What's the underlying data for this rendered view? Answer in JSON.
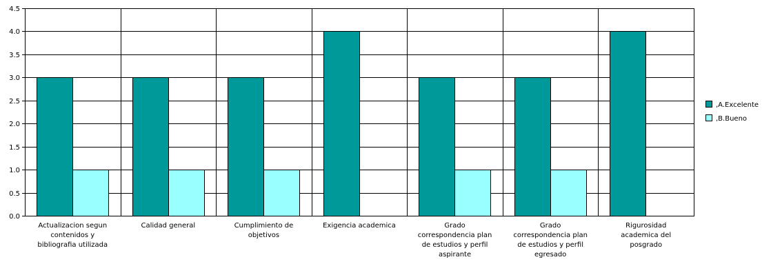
{
  "chart_data": {
    "type": "bar",
    "categories": [
      [
        "Actualizacion segun",
        "contenidos y",
        "bibliografia utilizada"
      ],
      [
        "Calidad general"
      ],
      [
        "Cumplimiento de",
        "objetivos"
      ],
      [
        "Exigencia academica"
      ],
      [
        "Grado",
        "correspondencia plan",
        "de estudios y perfil",
        "aspirante"
      ],
      [
        "Grado",
        "correspondencia plan",
        "de estudios y perfil",
        "egresado"
      ],
      [
        "Rigurosidad",
        "academica del",
        "posgrado"
      ]
    ],
    "series": [
      {
        "name": ",A.Excelente",
        "color": "#009999",
        "values": [
          3,
          3,
          3,
          4,
          3,
          3,
          4
        ]
      },
      {
        "name": ",B.Bueno",
        "color": "#99ffff",
        "values": [
          1,
          1,
          1,
          0,
          1,
          1,
          0
        ]
      }
    ],
    "ylim": [
      0,
      4.5
    ],
    "yticks": [
      "0.0",
      "0.5",
      "1.0",
      "1.5",
      "2.0",
      "2.5",
      "3.0",
      "3.5",
      "4.0",
      "4.5"
    ],
    "grid": "horizontal",
    "legend": "right"
  }
}
